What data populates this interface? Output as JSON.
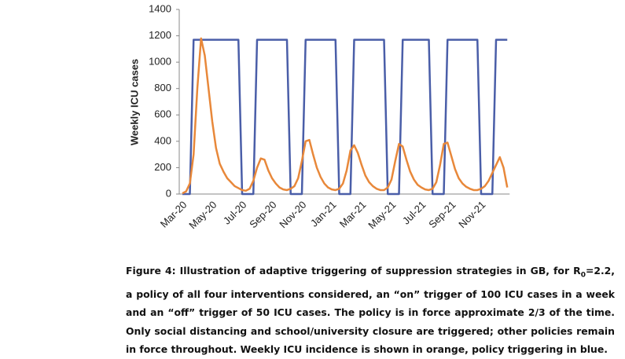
{
  "chart_data": {
    "type": "line",
    "y_label": "Weekly ICU cases",
    "categories": [
      "Mar-20",
      null,
      null,
      null,
      null,
      null,
      null,
      null,
      "May-20",
      null,
      null,
      null,
      null,
      null,
      null,
      null,
      "Jul-20",
      null,
      null,
      null,
      null,
      null,
      null,
      null,
      "Sep-20",
      null,
      null,
      null,
      null,
      null,
      null,
      null,
      "Nov-20",
      null,
      null,
      null,
      null,
      null,
      null,
      null,
      "Jan-21",
      null,
      null,
      null,
      null,
      null,
      null,
      null,
      "Mar-21",
      null,
      null,
      null,
      null,
      null,
      null,
      null,
      "May-21",
      null,
      null,
      null,
      null,
      null,
      null,
      null,
      "Jul-21",
      null,
      null,
      null,
      null,
      null,
      null,
      null,
      "Sep-21",
      null,
      null,
      null,
      null,
      null,
      null,
      null,
      "Nov-21",
      null,
      null,
      null,
      null,
      null,
      null,
      null
    ],
    "series": [
      {
        "color": "#4a5ea8",
        "values": [
          0,
          0,
          0,
          1170,
          1170,
          1170,
          1170,
          1170,
          1170,
          1170,
          1170,
          1170,
          1170,
          1170,
          1170,
          1170,
          0,
          0,
          0,
          0,
          1170,
          1170,
          1170,
          1170,
          1170,
          1170,
          1170,
          1170,
          1170,
          0,
          0,
          0,
          0,
          1170,
          1170,
          1170,
          1170,
          1170,
          1170,
          1170,
          1170,
          1170,
          0,
          0,
          0,
          0,
          1170,
          1170,
          1170,
          1170,
          1170,
          1170,
          1170,
          1170,
          1170,
          0,
          0,
          0,
          0,
          1170,
          1170,
          1170,
          1170,
          1170,
          1170,
          1170,
          1170,
          0,
          0,
          0,
          0,
          1170,
          1170,
          1170,
          1170,
          1170,
          1170,
          1170,
          1170,
          1170,
          0,
          0,
          0,
          0,
          1170,
          1170,
          1170,
          1170
        ]
      },
      {
        "color": "#e8883a",
        "values": [
          5,
          20,
          80,
          300,
          800,
          1180,
          1050,
          800,
          550,
          350,
          230,
          170,
          120,
          90,
          60,
          45,
          30,
          25,
          40,
          100,
          200,
          270,
          260,
          180,
          120,
          80,
          50,
          35,
          30,
          40,
          60,
          120,
          250,
          400,
          410,
          300,
          200,
          130,
          80,
          50,
          35,
          30,
          40,
          80,
          180,
          330,
          370,
          310,
          220,
          140,
          90,
          60,
          40,
          30,
          30,
          50,
          110,
          250,
          380,
          360,
          260,
          170,
          110,
          70,
          50,
          35,
          30,
          40,
          90,
          220,
          380,
          390,
          290,
          190,
          120,
          80,
          55,
          40,
          30,
          30,
          40,
          60,
          100,
          160,
          220,
          280,
          200,
          50
        ]
      }
    ],
    "ylim": [
      0,
      1400
    ],
    "yticks": [
      0,
      200,
      400,
      600,
      800,
      1000,
      1200,
      1400
    ]
  },
  "caption": {
    "before": "Figure 4: Illustration of adaptive triggering of suppression strategies in GB, for R",
    "subscript": "0",
    "after": "=2.2, a policy of all four interventions considered, an “on” trigger of 100 ICU cases in a week and an “off” trigger of 50 ICU cases.  The policy is in force approximate 2/3 of the time. Only social distancing and school/university closure are triggered; other policies remain in force throughout. Weekly ICU incidence is shown in orange, policy triggering in blue."
  }
}
